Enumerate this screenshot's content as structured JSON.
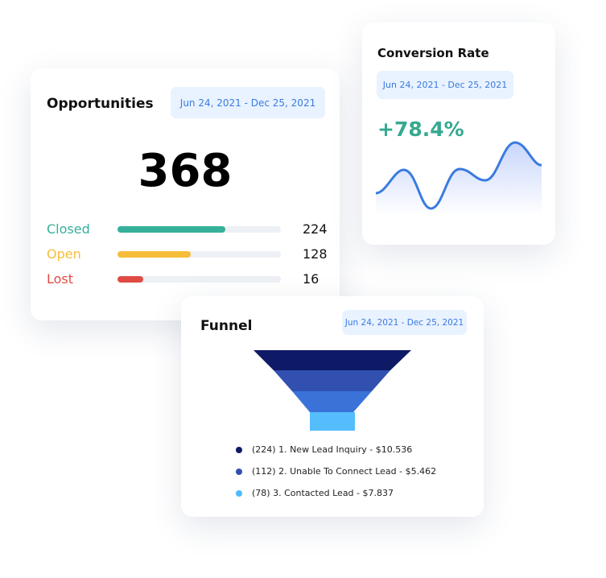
{
  "opportunities": {
    "title": "Opportunities",
    "date_range": "Jun 24, 2021 -  Dec 25, 2021",
    "total": "368",
    "rows": [
      {
        "label": "Closed",
        "value": "224",
        "color": "#35b09a",
        "fraction": 0.66
      },
      {
        "label": "Open",
        "value": "128",
        "color": "#f6bd3b",
        "fraction": 0.45
      },
      {
        "label": "Lost",
        "value": "16",
        "color": "#e04b44",
        "fraction": 0.16
      }
    ]
  },
  "conversion": {
    "title": "Conversion Rate",
    "date_range": "Jun 24, 2021 -  Dec 25, 2021",
    "value": "+78.4%",
    "value_color": "#35a98f",
    "line_color": "#3a7be0"
  },
  "funnel": {
    "title": "Funnel",
    "date_range": "Jun 24, 2021 -  Dec 25, 2021",
    "stages": [
      {
        "text": "(224) 1. New Lead Inquiry - $10.536",
        "color": "#0e1a66"
      },
      {
        "text": "(112) 2. Unable To Connect Lead - $5.462",
        "color": "#3150b0"
      },
      {
        "text": "(78) 3. Contacted Lead - $7.837",
        "color": "#4dbcfb"
      }
    ],
    "band_colors": [
      "#0e1a66",
      "#3150b0",
      "#3a72d8",
      "#56bdfd"
    ]
  }
}
